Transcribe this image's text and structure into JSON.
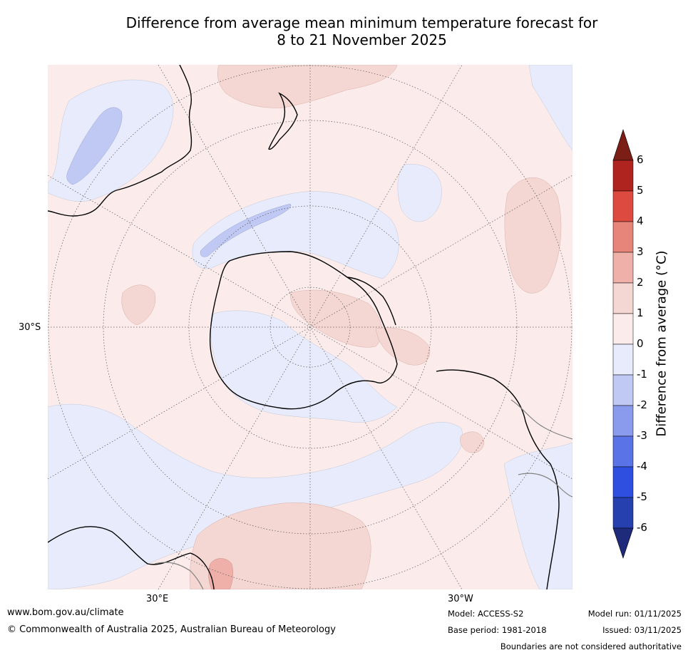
{
  "title": {
    "line1": "Difference from average mean minimum temperature forecast for",
    "line2": "8 to 21 November 2025"
  },
  "map": {
    "projection": "south-polar stereographic",
    "lat_labels": [
      "30°S"
    ],
    "lon_labels": [
      "30°E",
      "30°W"
    ]
  },
  "colorbar": {
    "title": "Difference from average (°C)",
    "tick_labels": [
      "6",
      "5",
      "4",
      "3",
      "2",
      "1",
      "0",
      "-1",
      "-2",
      "-3",
      "-4",
      "-5",
      "-6"
    ],
    "colors": {
      "above_6": "#7a1e16",
      "5_to_6": "#b0241f",
      "4_to_5": "#dd4a3f",
      "3_to_4": "#e8857a",
      "2_to_3": "#eeb0a8",
      "1_to_2": "#f4d6d2",
      "0_to_1": "#fbeceb",
      "m1_to_0": "#e7ebfb",
      "m2_to_m1": "#c0c8f4",
      "m3_to_m2": "#8a9bee",
      "m4_to_m3": "#5a73e6",
      "m5_to_m4": "#2f4fe0",
      "m6_to_m5": "#2740b0",
      "below_m6": "#1e2a7a"
    }
  },
  "footer": {
    "website": "www.bom.gov.au/climate",
    "copyright": "© Commonwealth of Australia 2025, Australian Bureau of Meteorology",
    "model": "Model: ACCESS-S2",
    "base_period": "Base period: 1981-2018",
    "model_run": "Model run: 01/11/2025",
    "issued": "Issued: 03/11/2025",
    "disclaimer": "Boundaries are not considered authoritative"
  }
}
